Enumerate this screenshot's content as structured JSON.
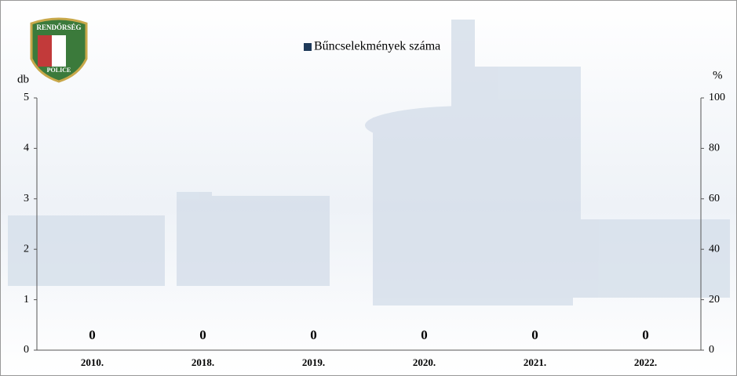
{
  "logo": {
    "top_text": "RENDŐRSÉG",
    "bottom_text": "POLICE"
  },
  "chart_data": {
    "type": "bar",
    "categories": [
      "2010.",
      "2018.",
      "2019.",
      "2020.",
      "2021.",
      "2022."
    ],
    "series": [
      {
        "name": "Bűncselekmények száma",
        "color": "#1f3a5a",
        "values": [
          0,
          0,
          0,
          0,
          0,
          0
        ]
      }
    ],
    "y_label": "db",
    "y2_label": "%",
    "ylim": [
      0,
      5
    ],
    "yticks": [
      0,
      1,
      2,
      3,
      4,
      5
    ],
    "y2lim": [
      0,
      100
    ],
    "y2ticks": [
      0,
      20,
      40,
      60,
      80,
      100
    ],
    "legend": "top"
  }
}
